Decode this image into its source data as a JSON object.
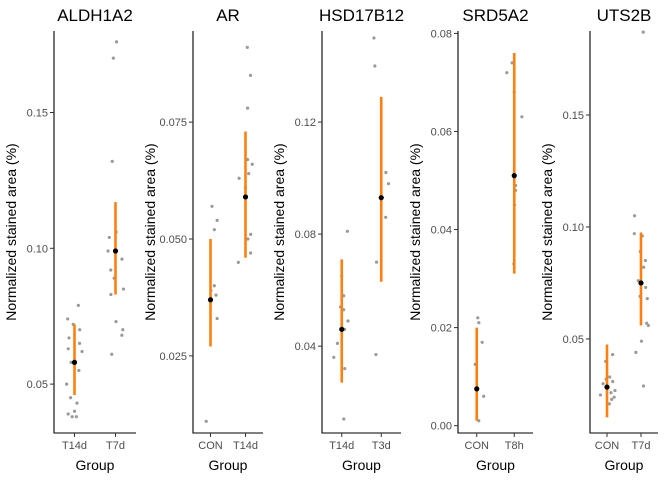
{
  "chart_data": [
    {
      "type": "scatter",
      "title": "ALDH1A2",
      "xlabel": "Group",
      "ylabel": "Normalized stained area (%)",
      "categories": [
        "T14d",
        "T7d"
      ],
      "ylim": [
        0.032,
        0.18
      ],
      "yticks": [
        "0.05",
        "0.10",
        "0.15"
      ],
      "grid": false,
      "points": [
        {
          "group": "T14d",
          "values": [
            0.079,
            0.074,
            0.072,
            0.07,
            0.067,
            0.065,
            0.063,
            0.062,
            0.058,
            0.055,
            0.05,
            0.045,
            0.043,
            0.04,
            0.039,
            0.038,
            0.038
          ]
        },
        {
          "group": "T7d",
          "values": [
            0.176,
            0.17,
            0.132,
            0.106,
            0.104,
            0.099,
            0.096,
            0.092,
            0.089,
            0.085,
            0.083,
            0.073,
            0.07,
            0.068,
            0.061
          ]
        }
      ],
      "summary": [
        {
          "group": "T14d",
          "mean": 0.058,
          "ci_low": 0.046,
          "ci_high": 0.072
        },
        {
          "group": "T7d",
          "mean": 0.099,
          "ci_low": 0.083,
          "ci_high": 0.117
        }
      ]
    },
    {
      "type": "scatter",
      "title": "AR",
      "xlabel": "Group",
      "ylabel": "Normalized stained area (%)",
      "categories": [
        "CON",
        "T14d"
      ],
      "ylim": [
        0.0085,
        0.0945
      ],
      "yticks": [
        "0.025",
        "0.050",
        "0.075"
      ],
      "grid": false,
      "points": [
        {
          "group": "CON",
          "values": [
            0.057,
            0.054,
            0.052,
            0.04,
            0.039,
            0.038,
            0.033,
            0.011
          ]
        },
        {
          "group": "T14d",
          "values": [
            0.091,
            0.085,
            0.078,
            0.067,
            0.066,
            0.064,
            0.063,
            0.061,
            0.051,
            0.05,
            0.047,
            0.045
          ]
        }
      ],
      "summary": [
        {
          "group": "CON",
          "mean": 0.037,
          "ci_low": 0.027,
          "ci_high": 0.05
        },
        {
          "group": "T14d",
          "mean": 0.059,
          "ci_low": 0.046,
          "ci_high": 0.073
        }
      ]
    },
    {
      "type": "scatter",
      "title": "HSD17B12",
      "xlabel": "Group",
      "ylabel": "Normalized stained area (%)",
      "categories": [
        "T14d",
        "T3d"
      ],
      "ylim": [
        0.009,
        0.1525
      ],
      "yticks": [
        "0.04",
        "0.08",
        "0.12"
      ],
      "grid": false,
      "points": [
        {
          "group": "T14d",
          "values": [
            0.081,
            0.065,
            0.058,
            0.054,
            0.053,
            0.049,
            0.046,
            0.041,
            0.036,
            0.032,
            0.014
          ]
        },
        {
          "group": "T3d",
          "values": [
            0.15,
            0.14,
            0.102,
            0.098,
            0.086,
            0.07,
            0.037
          ]
        }
      ],
      "summary": [
        {
          "group": "T14d",
          "mean": 0.046,
          "ci_low": 0.027,
          "ci_high": 0.071
        },
        {
          "group": "T3d",
          "mean": 0.093,
          "ci_low": 0.063,
          "ci_high": 0.129
        }
      ]
    },
    {
      "type": "scatter",
      "title": "SRD5A2",
      "xlabel": "Group",
      "ylabel": "Normalized stained area (%)",
      "categories": [
        "CON",
        "T8h"
      ],
      "ylim": [
        -0.0015,
        0.0805
      ],
      "yticks": [
        "0.00",
        "0.02",
        "0.04",
        "0.06",
        "0.08"
      ],
      "grid": false,
      "points": [
        {
          "group": "CON",
          "values": [
            0.022,
            0.021,
            0.017,
            0.0125,
            0.006,
            0.001
          ]
        },
        {
          "group": "T8h",
          "values": [
            0.074,
            0.072,
            0.068,
            0.063,
            0.049,
            0.048,
            0.045,
            0.033
          ]
        }
      ],
      "summary": [
        {
          "group": "CON",
          "mean": 0.0075,
          "ci_low": 0.001,
          "ci_high": 0.02
        },
        {
          "group": "T8h",
          "mean": 0.051,
          "ci_low": 0.031,
          "ci_high": 0.076
        }
      ]
    },
    {
      "type": "scatter",
      "title": "UTS2B",
      "xlabel": "Group",
      "ylabel": "Normalized stained area (%)",
      "categories": [
        "CON",
        "T7d"
      ],
      "ylim": [
        0.008,
        0.1875
      ],
      "yticks": [
        "0.05",
        "0.10",
        "0.15"
      ],
      "grid": false,
      "points": [
        {
          "group": "CON",
          "values": [
            0.043,
            0.04,
            0.033,
            0.032,
            0.031,
            0.03,
            0.029,
            0.027,
            0.026,
            0.025,
            0.024,
            0.023,
            0.021
          ]
        },
        {
          "group": "T7d",
          "values": [
            0.187,
            0.105,
            0.097,
            0.096,
            0.089,
            0.085,
            0.082,
            0.076,
            0.073,
            0.069,
            0.068,
            0.057,
            0.056,
            0.049,
            0.044,
            0.029
          ]
        }
      ],
      "summary": [
        {
          "group": "CON",
          "mean": 0.0285,
          "ci_low": 0.015,
          "ci_high": 0.0475
        },
        {
          "group": "T7d",
          "mean": 0.075,
          "ci_low": 0.056,
          "ci_high": 0.0975
        }
      ]
    }
  ]
}
